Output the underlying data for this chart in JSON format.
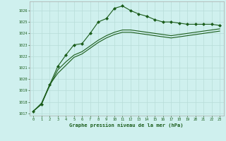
{
  "title": "Graphe pression niveau de la mer (hPa)",
  "bg_color": "#cff0ee",
  "grid_color": "#b8ddd8",
  "line_color": "#1a5c1a",
  "marker_color": "#1a5c1a",
  "xlim": [
    -0.5,
    23.5
  ],
  "ylim": [
    1016.8,
    1026.8
  ],
  "xticks": [
    0,
    1,
    2,
    3,
    4,
    5,
    6,
    7,
    8,
    9,
    10,
    11,
    12,
    13,
    14,
    15,
    16,
    17,
    18,
    19,
    20,
    21,
    22,
    23
  ],
  "yticks": [
    1017,
    1018,
    1019,
    1020,
    1021,
    1022,
    1023,
    1024,
    1025,
    1026
  ],
  "series": [
    {
      "x": [
        0,
        1,
        2,
        3,
        4,
        5,
        6,
        7,
        8,
        9,
        10,
        11,
        12,
        13,
        14,
        15,
        16,
        17,
        18,
        19,
        20,
        21,
        22,
        23
      ],
      "y": [
        1017.2,
        1017.8,
        1019.5,
        1021.1,
        1022.1,
        1023.0,
        1023.1,
        1024.0,
        1025.0,
        1025.3,
        1026.2,
        1026.4,
        1026.0,
        1025.7,
        1025.5,
        1025.2,
        1025.0,
        1025.0,
        1024.9,
        1024.8,
        1024.8,
        1024.8,
        1024.8,
        1024.7
      ],
      "marker": "D",
      "linewidth": 0.8,
      "markersize": 2.0
    },
    {
      "x": [
        0,
        1,
        2,
        3,
        4,
        5,
        6,
        7,
        8,
        9,
        10,
        11,
        12,
        13,
        14,
        15,
        16,
        17,
        18,
        19,
        20,
        21,
        22,
        23
      ],
      "y": [
        1017.2,
        1017.8,
        1019.4,
        1020.8,
        1021.5,
        1022.1,
        1022.4,
        1022.9,
        1023.4,
        1023.8,
        1024.1,
        1024.3,
        1024.3,
        1024.2,
        1024.1,
        1024.0,
        1023.9,
        1023.8,
        1023.9,
        1024.0,
        1024.1,
        1024.2,
        1024.3,
        1024.4
      ],
      "marker": null,
      "linewidth": 0.8,
      "markersize": 0
    },
    {
      "x": [
        0,
        1,
        2,
        3,
        4,
        5,
        6,
        7,
        8,
        9,
        10,
        11,
        12,
        13,
        14,
        15,
        16,
        17,
        18,
        19,
        20,
        21,
        22,
        23
      ],
      "y": [
        1017.2,
        1017.9,
        1019.5,
        1020.5,
        1021.2,
        1021.9,
        1022.2,
        1022.7,
        1023.2,
        1023.6,
        1023.9,
        1024.1,
        1024.1,
        1024.0,
        1023.9,
        1023.8,
        1023.7,
        1023.6,
        1023.7,
        1023.8,
        1023.9,
        1024.0,
        1024.1,
        1024.2
      ],
      "marker": null,
      "linewidth": 0.8,
      "markersize": 0
    }
  ]
}
